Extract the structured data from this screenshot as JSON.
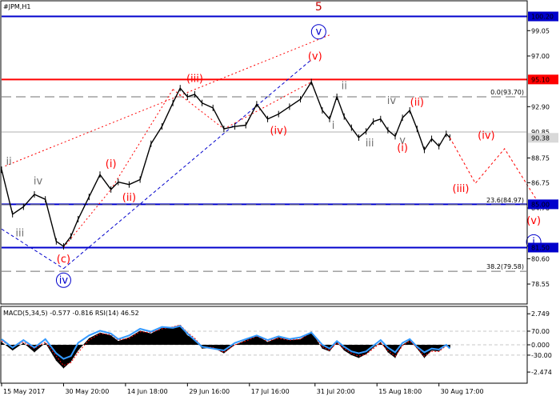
{
  "chart_data": {
    "type": "line",
    "instrument": "#JPM,H1",
    "indicator_label": "MACD(5,34,5) -0.577 -0.816 RSI(14) 46.52",
    "colors": {
      "price": "#000000",
      "resistance": "#ff0000",
      "support": "#0000cc",
      "fib": "#707070",
      "wave_red": "#ff0000",
      "wave_blue": "#0000cc",
      "wave_gray": "#707070",
      "top_wave": "#c00000",
      "macd_line": "#3399ff",
      "macd_signal": "#ff0000",
      "macd_hist": "#000000",
      "grid": "#c8c8c8"
    },
    "price_axis": {
      "ylim": [
        77.0,
        101.4
      ],
      "ticks": [
        "99.05",
        "97.00",
        "92.90",
        "88.75",
        "86.75",
        "84.70",
        "80.60",
        "78.55"
      ],
      "current_price": "90.38",
      "current_price_value": 90.38,
      "reference_value": 90.85,
      "reference_label": "90.85"
    },
    "time_axis": {
      "xlim": [
        0,
        144
      ],
      "labels": [
        "15 May 2017",
        "30 May 20:00",
        "14 Jun 18:00",
        "29 Jun 16:00",
        "17 Jul 16:00",
        "31 Jul 20:00",
        "15 Aug 18:00",
        "30 Aug 17:00"
      ],
      "label_positions": [
        0,
        17,
        34,
        51,
        68,
        86,
        103,
        120
      ]
    },
    "levels": [
      {
        "value": 100.2,
        "label": "100.20",
        "color": "#0000cc",
        "style": "solid"
      },
      {
        "value": 95.1,
        "label": "95.10",
        "color": "#ff0000",
        "style": "solid"
      },
      {
        "value": 85.0,
        "label": "85.00",
        "color": "#0000cc",
        "style": "solid"
      },
      {
        "value": 81.5,
        "label": "81.50",
        "color": "#0000cc",
        "style": "solid"
      }
    ],
    "fib_levels": [
      {
        "value": 93.7,
        "label": "0.0(93.70)"
      },
      {
        "value": 84.97,
        "label": "23.6(84.97)"
      },
      {
        "value": 79.58,
        "label": "38.2(79.58)"
      }
    ],
    "price_series": {
      "x": [
        0,
        3,
        6,
        9,
        12,
        15,
        17,
        19,
        21,
        24,
        27,
        30,
        32,
        35,
        38,
        41,
        44,
        47,
        49,
        51,
        53,
        55,
        58,
        61,
        64,
        67,
        70,
        73,
        76,
        79,
        82,
        85,
        88,
        90,
        92,
        94,
        96,
        98,
        100,
        102,
        104,
        106,
        108,
        110,
        112,
        114,
        116,
        118,
        120,
        122,
        123
      ],
      "y": [
        87.8,
        84.2,
        84.8,
        85.8,
        85.4,
        82.0,
        81.6,
        82.4,
        83.8,
        85.6,
        87.4,
        86.2,
        86.8,
        86.6,
        87.0,
        89.9,
        91.3,
        93.2,
        94.4,
        93.7,
        93.9,
        93.2,
        92.8,
        91.1,
        91.3,
        91.4,
        93.1,
        91.9,
        92.3,
        92.9,
        93.5,
        94.9,
        92.6,
        91.9,
        93.7,
        92.1,
        91.2,
        90.4,
        90.9,
        91.7,
        91.9,
        91.0,
        90.5,
        92.0,
        92.6,
        91.1,
        89.4,
        90.3,
        89.7,
        90.7,
        90.4
      ]
    },
    "projection": {
      "x": [
        123,
        130,
        138,
        148
      ],
      "y": [
        90.4,
        86.7,
        89.5,
        84.8
      ]
    },
    "trendlines": [
      {
        "from": [
          1,
          88.1
        ],
        "to": [
          90,
          98.7
        ],
        "color": "#ff0000",
        "style": "dotted"
      },
      {
        "from": [
          0,
          83.0
        ],
        "to": [
          17,
          79.8
        ],
        "color": "#0000cc",
        "style": "dashed"
      },
      {
        "from": [
          17,
          79.8
        ],
        "to": [
          85,
          96.7
        ],
        "color": "#0000cc",
        "style": "dashed"
      },
      {
        "from": [
          17,
          81.5
        ],
        "to": [
          30,
          86.2
        ],
        "color": "#ff0000",
        "style": "dotted"
      },
      {
        "from": [
          30,
          86.2
        ],
        "to": [
          47,
          94.3
        ],
        "color": "#ff0000",
        "style": "dotted"
      },
      {
        "from": [
          47,
          94.3
        ],
        "to": [
          61,
          91.1
        ],
        "color": "#ff0000",
        "style": "dotted"
      },
      {
        "from": [
          61,
          91.1
        ],
        "to": [
          85,
          94.9
        ],
        "color": "#ff0000",
        "style": "dotted"
      }
    ],
    "wave_labels": [
      {
        "text": "5",
        "x": 87,
        "y": 100.7,
        "color": "#c00000",
        "style": "plain"
      },
      {
        "text": "v",
        "x": 87,
        "y": 98.7,
        "color": "#0000cc",
        "style": "circle"
      },
      {
        "text": "(v)",
        "x": 86,
        "y": 96.7,
        "color": "#ff0000",
        "style": "plain"
      },
      {
        "text": "(iii)",
        "x": 53,
        "y": 94.9,
        "color": "#ff0000",
        "style": "plain"
      },
      {
        "text": "(iv)",
        "x": 76,
        "y": 90.7,
        "color": "#ff0000",
        "style": "plain"
      },
      {
        "text": "(i)",
        "x": 30,
        "y": 88.0,
        "color": "#ff0000",
        "style": "plain"
      },
      {
        "text": "(ii)",
        "x": 35,
        "y": 85.3,
        "color": "#ff0000",
        "style": "plain"
      },
      {
        "text": "(c)",
        "x": 17,
        "y": 80.3,
        "color": "#ff0000",
        "style": "plain"
      },
      {
        "text": "iv",
        "x": 17,
        "y": 78.6,
        "color": "#0000cc",
        "style": "circle"
      },
      {
        "text": "ii",
        "x": 2,
        "y": 88.2,
        "color": "#707070",
        "style": "plain"
      },
      {
        "text": "iv",
        "x": 10,
        "y": 86.6,
        "color": "#707070",
        "style": "plain"
      },
      {
        "text": "iii",
        "x": 5,
        "y": 82.4,
        "color": "#707070",
        "style": "plain"
      },
      {
        "text": "ii",
        "x": 94,
        "y": 94.3,
        "color": "#707070",
        "style": "plain"
      },
      {
        "text": "i",
        "x": 91,
        "y": 91.1,
        "color": "#707070",
        "style": "plain"
      },
      {
        "text": "iii",
        "x": 101,
        "y": 89.7,
        "color": "#707070",
        "style": "plain"
      },
      {
        "text": "iv",
        "x": 107,
        "y": 93.1,
        "color": "#707070",
        "style": "plain"
      },
      {
        "text": "v",
        "x": 110,
        "y": 89.9,
        "color": "#707070",
        "style": "plain"
      },
      {
        "text": "(i)",
        "x": 110,
        "y": 89.3,
        "color": "#ff0000",
        "style": "plain"
      },
      {
        "text": "(ii)",
        "x": 114,
        "y": 93.0,
        "color": "#ff0000",
        "style": "plain"
      },
      {
        "text": "(iii)",
        "x": 126,
        "y": 86.0,
        "color": "#ff0000",
        "style": "plain"
      },
      {
        "text": "(iv)",
        "x": 133,
        "y": 90.3,
        "color": "#ff0000",
        "style": "plain"
      },
      {
        "text": "(v)",
        "x": 146,
        "y": 83.4,
        "color": "#ff0000",
        "style": "plain"
      },
      {
        "text": "i",
        "x": 146,
        "y": 81.7,
        "color": "#0000cc",
        "style": "circle"
      }
    ],
    "indicator": {
      "ylim": [
        -4.0,
        4.0
      ],
      "ticks": [
        {
          "label": "2.749",
          "value": 3.3
        },
        {
          "label": "70.00",
          "value": 1.45
        },
        {
          "label": "0.000",
          "value": 0.0
        },
        {
          "label": "-30.00",
          "value": -1.1
        },
        {
          "label": "-2.474",
          "value": -2.9
        }
      ],
      "x": [
        0,
        3,
        6,
        9,
        12,
        15,
        17,
        19,
        21,
        24,
        27,
        30,
        32,
        35,
        38,
        41,
        44,
        47,
        49,
        51,
        53,
        55,
        58,
        61,
        64,
        67,
        70,
        73,
        76,
        79,
        82,
        85,
        88,
        90,
        92,
        94,
        96,
        98,
        100,
        102,
        104,
        106,
        108,
        110,
        112,
        114,
        116,
        118,
        120,
        122,
        123
      ],
      "histogram": [
        0.3,
        -0.6,
        0.2,
        -0.8,
        0.2,
        -1.7,
        -2.5,
        -1.8,
        -0.6,
        0.7,
        1.3,
        1.0,
        0.4,
        0.8,
        1.5,
        1.2,
        1.8,
        1.9,
        2.1,
        1.0,
        0.6,
        -0.4,
        -0.3,
        -0.9,
        0.0,
        0.5,
        1.0,
        0.3,
        0.8,
        0.5,
        0.6,
        1.4,
        -0.4,
        -0.7,
        0.3,
        -0.6,
        -1.1,
        -1.4,
        -1.0,
        -0.3,
        0.3,
        -0.8,
        -1.4,
        0.0,
        0.5,
        -0.4,
        -1.4,
        -0.6,
        -0.7,
        0.0,
        -0.3
      ],
      "line": [
        0.6,
        -0.3,
        0.5,
        -0.3,
        0.6,
        -0.9,
        -1.5,
        -1.2,
        0.2,
        1.0,
        1.5,
        1.2,
        0.6,
        1.0,
        1.7,
        1.4,
        1.9,
        1.8,
        2.0,
        1.2,
        0.5,
        -0.2,
        -0.4,
        -0.6,
        0.2,
        0.6,
        1.0,
        0.5,
        0.9,
        0.6,
        0.8,
        1.3,
        0.0,
        -0.4,
        0.4,
        -0.2,
        -0.7,
        -0.9,
        -0.7,
        -0.1,
        0.5,
        -0.3,
        -0.8,
        0.2,
        0.6,
        -0.2,
        -0.8,
        -0.4,
        -0.5,
        0.0,
        -0.4
      ],
      "signal": [
        0.4,
        -0.2,
        0.3,
        -0.4,
        0.3,
        -1.2,
        -2.2,
        -1.9,
        -0.8,
        0.5,
        1.2,
        1.1,
        0.5,
        0.7,
        1.4,
        1.3,
        1.7,
        1.9,
        2.1,
        1.3,
        0.7,
        -0.2,
        -0.3,
        -0.8,
        0.0,
        0.4,
        0.9,
        0.4,
        0.7,
        0.5,
        0.6,
        1.3,
        -0.2,
        -0.6,
        0.2,
        -0.4,
        -0.9,
        -1.2,
        -1.0,
        -0.4,
        0.2,
        -0.6,
        -1.2,
        -0.1,
        0.4,
        -0.3,
        -1.2,
        -0.7,
        -0.7,
        -0.1,
        -0.4
      ]
    },
    "grid": false
  }
}
